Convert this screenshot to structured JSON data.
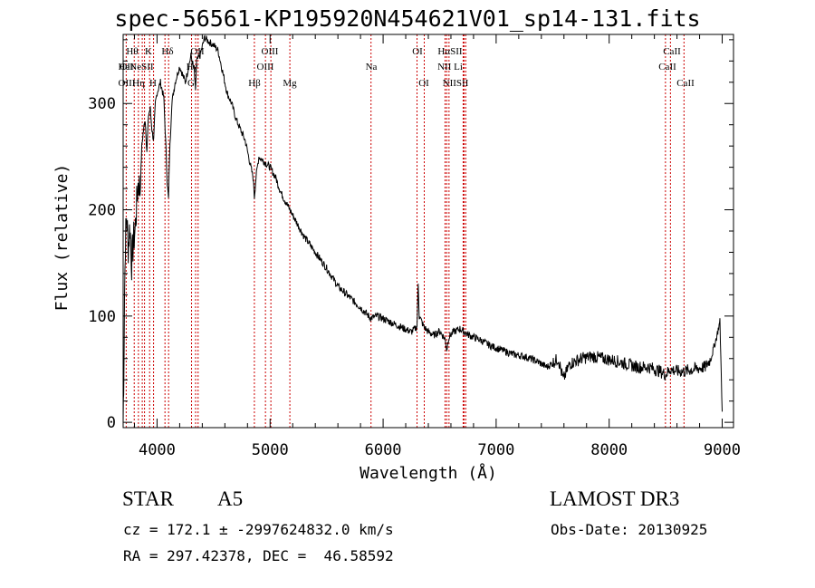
{
  "title": "spec-56561-KP195920N454621V01_sp14-131.fits",
  "info": {
    "object_class": "STAR",
    "subclass": "A5",
    "survey": "LAMOST DR3",
    "cz": "cz = 172.1 ± -2997624832.0 km/s",
    "obs_date": "Obs-Date: 20130925",
    "coords": "RA = 297.42378, DEC =  46.58592"
  },
  "chart_data": {
    "type": "line",
    "title": "spec-56561-KP195920N454621V01_sp14-131.fits",
    "xlabel": "Wavelength (Å)",
    "ylabel": "Flux (relative)",
    "xlim": [
      3700,
      9100
    ],
    "ylim": [
      -5,
      365
    ],
    "xticks": [
      4000,
      5000,
      6000,
      7000,
      8000,
      9000
    ],
    "yticks": [
      0,
      100,
      200,
      300
    ],
    "series": [
      {
        "name": "flux",
        "x": [
          3700,
          3705,
          3712,
          3720,
          3730,
          3745,
          3760,
          3775,
          3790,
          3805,
          3820,
          3835,
          3850,
          3865,
          3880,
          3895,
          3910,
          3925,
          3940,
          3955,
          3970,
          3985,
          4000,
          4030,
          4060,
          4080,
          4090,
          4101,
          4110,
          4130,
          4160,
          4200,
          4250,
          4300,
          4330,
          4340,
          4350,
          4380,
          4420,
          4460,
          4500,
          4540,
          4580,
          4620,
          4660,
          4700,
          4740,
          4780,
          4820,
          4850,
          4861,
          4875,
          4900,
          4950,
          5000,
          5050,
          5100,
          5150,
          5200,
          5300,
          5400,
          5500,
          5600,
          5700,
          5800,
          5890,
          5950,
          6050,
          6150,
          6250,
          6300,
          6310,
          6320,
          6360,
          6400,
          6450,
          6500,
          6550,
          6563,
          6580,
          6620,
          6680,
          6720,
          6760,
          6850,
          6950,
          7050,
          7150,
          7250,
          7350,
          7450,
          7550,
          7594,
          7650,
          7750,
          7850,
          7950,
          8050,
          8150,
          8250,
          8350,
          8450,
          8498,
          8542,
          8600,
          8662,
          8750,
          8850,
          8900,
          8950,
          8980,
          9000
        ],
        "values": [
          0,
          40,
          120,
          170,
          195,
          165,
          185,
          150,
          170,
          180,
          205,
          230,
          215,
          260,
          275,
          285,
          255,
          290,
          295,
          275,
          265,
          300,
          310,
          320,
          305,
          255,
          225,
          210,
          250,
          300,
          320,
          335,
          320,
          345,
          330,
          310,
          340,
          345,
          362,
          358,
          355,
          350,
          330,
          310,
          300,
          285,
          275,
          265,
          245,
          230,
          212,
          230,
          250,
          245,
          240,
          230,
          215,
          205,
          195,
          175,
          160,
          145,
          128,
          118,
          108,
          98,
          100,
          95,
          90,
          85,
          90,
          130,
          100,
          90,
          85,
          82,
          86,
          78,
          68,
          80,
          85,
          88,
          85,
          82,
          78,
          72,
          68,
          64,
          62,
          58,
          52,
          60,
          40,
          55,
          60,
          62,
          60,
          58,
          55,
          52,
          52,
          48,
          45,
          50,
          48,
          48,
          50,
          52,
          60,
          80,
          95,
          10
        ]
      }
    ],
    "line_markers": [
      {
        "wl": 3727,
        "label": "OII"
      },
      {
        "wl": 3798,
        "label": "Hθ"
      },
      {
        "wl": 3835,
        "label": "Hη"
      },
      {
        "wl": 3869,
        "label": "Ne"
      },
      {
        "wl": 3889,
        "label": "He"
      },
      {
        "wl": 3934,
        "label": "K"
      },
      {
        "wl": 3969,
        "label": "H"
      },
      {
        "wl": 4070,
        "label": "SII"
      },
      {
        "wl": 4102,
        "label": "Hδ"
      },
      {
        "wl": 4305,
        "label": "G"
      },
      {
        "wl": 4341,
        "label": "Hγ"
      },
      {
        "wl": 4363,
        "label": "OIII"
      },
      {
        "wl": 4861,
        "label": "Hβ"
      },
      {
        "wl": 4959,
        "label": "OIII"
      },
      {
        "wl": 5007,
        "label": "OIII"
      },
      {
        "wl": 5175,
        "label": "Mg"
      },
      {
        "wl": 5893,
        "label": "Na"
      },
      {
        "wl": 6300,
        "label": "OI"
      },
      {
        "wl": 6364,
        "label": "OI"
      },
      {
        "wl": 6548,
        "label": "NII"
      },
      {
        "wl": 6563,
        "label": "Hα"
      },
      {
        "wl": 6583,
        "label": "NII"
      },
      {
        "wl": 6708,
        "label": "Li"
      },
      {
        "wl": 6716,
        "label": "SII"
      },
      {
        "wl": 6731,
        "label": "SII"
      },
      {
        "wl": 8498,
        "label": "CaII"
      },
      {
        "wl": 8542,
        "label": "CaII"
      },
      {
        "wl": 8662,
        "label": "CaII"
      }
    ],
    "marker_label_rows": [
      [
        "Hθ",
        "K",
        "Hδ",
        "OII",
        "OIII",
        "OI",
        "HαSII",
        "CaII"
      ],
      [
        "OII",
        "HeNeSII",
        "Hγ",
        "OIII",
        "Na",
        "NII Li",
        "CaII"
      ],
      [
        "OIII",
        "Hη",
        "H",
        "G",
        "Hβ",
        "Mg",
        "OI",
        "NIISII",
        "CaII"
      ]
    ],
    "marker_color": "#cc0000",
    "line_color": "#000000"
  }
}
